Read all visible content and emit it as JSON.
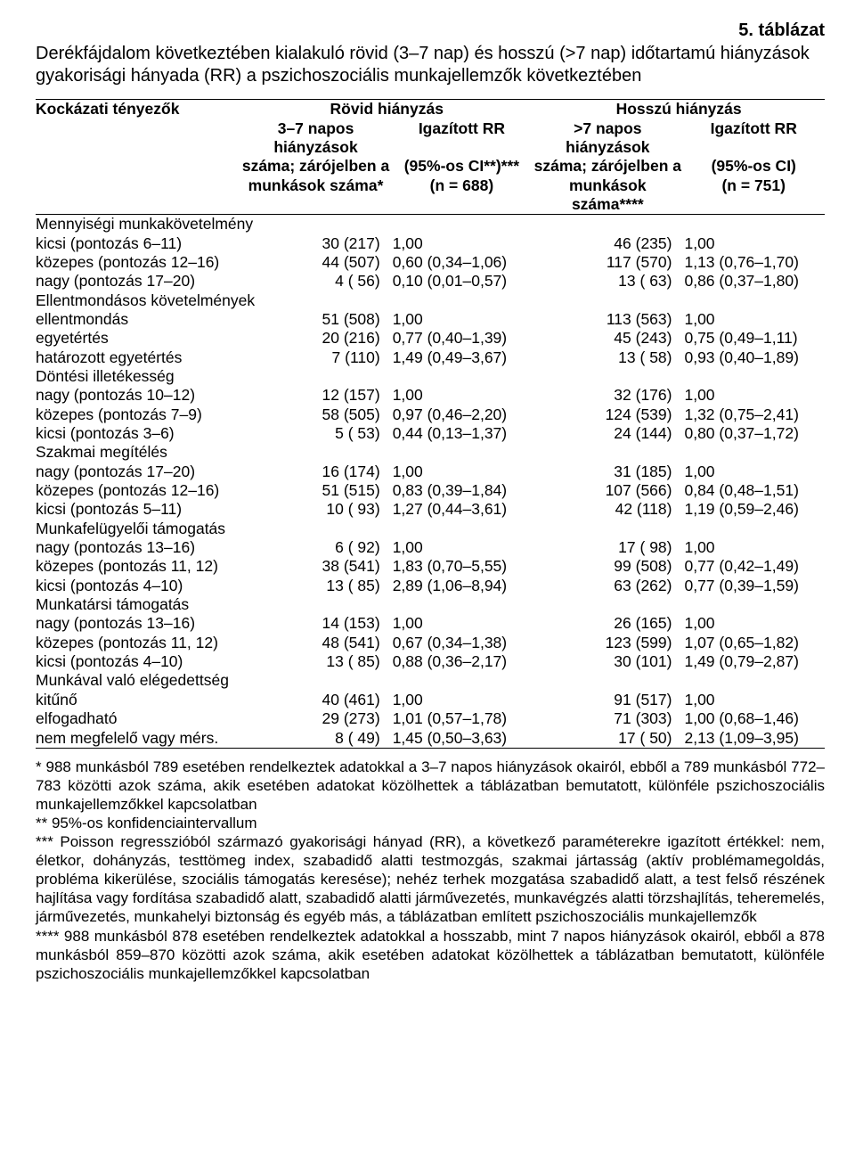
{
  "table_number": "5. táblázat",
  "title": "Derékfájdalom következtében kialakuló rövid (3–7 nap) és hosszú (>7 nap) időtartamú hiányzások gyakorisági hányada (RR) a pszichoszociális munkajellemzők következtében",
  "head": {
    "c1_top": "Kockázati tényezők",
    "span_short": "Rövid hiányzás",
    "span_long": "Hosszú hiányzás",
    "c2a": "3–7 napos hiányzások",
    "c2b": "száma; zárójelben a",
    "c2c": "munkások száma*",
    "c3a": "Igazított RR",
    "c3b": "(95%-os CI**)***",
    "c3c": "(n = 688)",
    "c4a": ">7 napos hiányzások",
    "c4b": "száma; zárójelben a",
    "c4c": "munkások száma****",
    "c5a": "Igazított RR",
    "c5b": "(95%-os CI)",
    "c5c": "(n = 751)"
  },
  "rows": [
    {
      "type": "section",
      "label": "Mennyiségi munkakövetelmény"
    },
    {
      "type": "data",
      "label": "kicsi (pontozás 6–11)",
      "c2": "30 (217)",
      "c3": "1,00",
      "c4": "46 (235)",
      "c5": "1,00"
    },
    {
      "type": "data",
      "label": "közepes (pontozás 12–16)",
      "c2": "44 (507)",
      "c3": "0,60 (0,34–1,06)",
      "c4": "117 (570)",
      "c5": "1,13 (0,76–1,70)"
    },
    {
      "type": "data",
      "label": "nagy (pontozás 17–20)",
      "c2": "4 (  56)",
      "c3": "0,10 (0,01–0,57)",
      "c4": "13 (  63)",
      "c5": "0,86 (0,37–1,80)"
    },
    {
      "type": "section",
      "label": "Ellentmondásos követelmények"
    },
    {
      "type": "data",
      "label": "ellentmondás",
      "c2": "51 (508)",
      "c3": "1,00",
      "c4": "113 (563)",
      "c5": "1,00"
    },
    {
      "type": "data",
      "label": "egyetértés",
      "c2": "20 (216)",
      "c3": "0,77 (0,40–1,39)",
      "c4": "45 (243)",
      "c5": "0,75 (0,49–1,11)"
    },
    {
      "type": "data",
      "label": "határozott egyetértés",
      "c2": "7 (110)",
      "c3": "1,49 (0,49–3,67)",
      "c4": "13 (  58)",
      "c5": "0,93 (0,40–1,89)"
    },
    {
      "type": "section",
      "label": "Döntési illetékesség"
    },
    {
      "type": "data",
      "label": "nagy (pontozás 10–12)",
      "c2": "12 (157)",
      "c3": "1,00",
      "c4": "32 (176)",
      "c5": "1,00"
    },
    {
      "type": "data",
      "label": "közepes (pontozás 7–9)",
      "c2": "58 (505)",
      "c3": "0,97 (0,46–2,20)",
      "c4": "124 (539)",
      "c5": "1,32 (0,75–2,41)"
    },
    {
      "type": "data",
      "label": "kicsi (pontozás 3–6)",
      "c2": "5 (  53)",
      "c3": "0,44 (0,13–1,37)",
      "c4": "24 (144)",
      "c5": "0,80 (0,37–1,72)"
    },
    {
      "type": "section",
      "label": "Szakmai megítélés"
    },
    {
      "type": "data",
      "label": "nagy (pontozás 17–20)",
      "c2": "16 (174)",
      "c3": "1,00",
      "c4": "31 (185)",
      "c5": "1,00"
    },
    {
      "type": "data",
      "label": "közepes (pontozás 12–16)",
      "c2": "51 (515)",
      "c3": "0,83 (0,39–1,84)",
      "c4": "107 (566)",
      "c5": "0,84 (0,48–1,51)"
    },
    {
      "type": "data",
      "label": "kicsi (pontozás 5–11)",
      "c2": "10 (  93)",
      "c3": "1,27 (0,44–3,61)",
      "c4": "42 (118)",
      "c5": "1,19 (0,59–2,46)"
    },
    {
      "type": "section",
      "label": "Munkafelügyelői támogatás"
    },
    {
      "type": "data",
      "label": "nagy (pontozás 13–16)",
      "c2": "6 (  92)",
      "c3": "1,00",
      "c4": "17 (  98)",
      "c5": "1,00"
    },
    {
      "type": "data",
      "label": "közepes (pontozás 11, 12)",
      "c2": "38 (541)",
      "c3": "1,83 (0,70–5,55)",
      "c4": "99 (508)",
      "c5": "0,77 (0,42–1,49)"
    },
    {
      "type": "data",
      "label": "kicsi (pontozás 4–10)",
      "c2": "13 (  85)",
      "c3": "2,89 (1,06–8,94)",
      "c4": "63 (262)",
      "c5": "0,77 (0,39–1,59)"
    },
    {
      "type": "section",
      "label": "Munkatársi támogatás"
    },
    {
      "type": "data",
      "label": "nagy (pontozás 13–16)",
      "c2": "14 (153)",
      "c3": "1,00",
      "c4": "26 (165)",
      "c5": "1,00"
    },
    {
      "type": "data",
      "label": "közepes (pontozás 11, 12)",
      "c2": "48 (541)",
      "c3": "0,67 (0,34–1,38)",
      "c4": "123 (599)",
      "c5": "1,07 (0,65–1,82)"
    },
    {
      "type": "data",
      "label": "kicsi (pontozás 4–10)",
      "c2": "13 (  85)",
      "c3": "0,88 (0,36–2,17)",
      "c4": "30 (101)",
      "c5": "1,49 (0,79–2,87)"
    },
    {
      "type": "section",
      "label": "Munkával való elégedettség"
    },
    {
      "type": "data",
      "label": "kitűnő",
      "c2": "40 (461)",
      "c3": "1,00",
      "c4": "91 (517)",
      "c5": "1,00"
    },
    {
      "type": "data",
      "label": "elfogadható",
      "c2": "29 (273)",
      "c3": "1,01 (0,57–1,78)",
      "c4": "71 (303)",
      "c5": "1,00 (0,68–1,46)"
    },
    {
      "type": "data",
      "label": "nem megfelelő vagy mérs.",
      "c2": "8 (  49)",
      "c3": "1,45 (0,50–3,63)",
      "c4": "17 (  50)",
      "c5": "2,13 (1,09–3,95)"
    }
  ],
  "footnotes": [
    "* 988 munkásból 789 esetében rendelkeztek adatokkal a 3–7 napos hiányzások okairól, ebből a 789 munkásból 772–783 közötti azok száma, akik esetében adatokat közölhettek a táblázatban bemutatott, különféle pszichoszociális munkajellemzőkkel kapcsolatban",
    "** 95%-os konfidenciaintervallum",
    "*** Poisson regresszióból származó gyakorisági hányad (RR), a következő paraméterekre igazított értékkel: nem, életkor, dohányzás, testtömeg index, szabadidő alatti testmozgás, szakmai jártasság (aktív problémamegoldás, probléma kikerülése, szociális támogatás keresése); nehéz terhek mozgatása szabadidő alatt, a test felső részének hajlítása vagy fordítása szabadidő alatt, szabadidő alatti járművezetés, munkavégzés alatti törzshajlítás, teheremelés, járművezetés, munkahelyi biztonság és egyéb más, a táblázatban említett pszichoszociális munkajellemzők",
    "**** 988 munkásból 878 esetében rendelkeztek adatokkal a hosszabb, mint 7 napos hiányzások okairól, ebből a 878 munkásból 859–870 közötti azok száma, akik esetében adatokat közölhettek a táblázatban bemutatott, különféle pszichoszociális munkajellemzőkkel kapcsolatban"
  ],
  "style": {
    "font": "Arial",
    "fontsize": 17.5,
    "titlesize": 20,
    "text_color": "#000000",
    "bg": "#ffffff",
    "border_color": "#000000",
    "col_pct": [
      26,
      19,
      18,
      19,
      18
    ]
  }
}
